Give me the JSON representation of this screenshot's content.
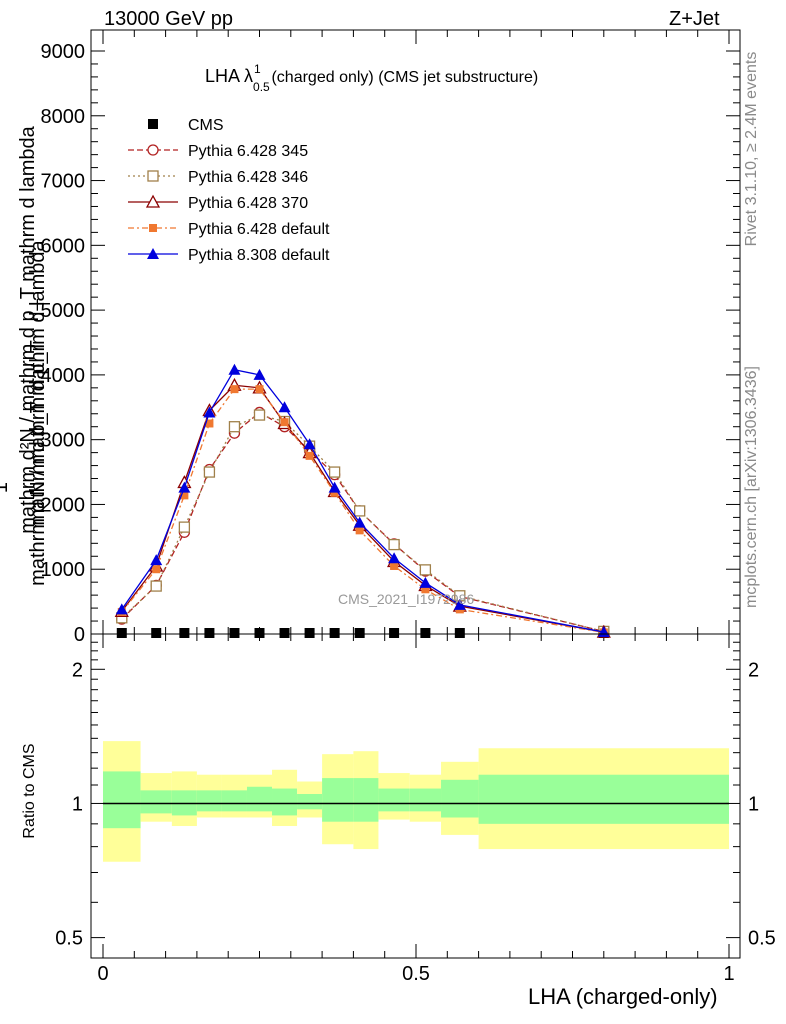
{
  "header": {
    "left": "13000 GeV pp",
    "right": "Z+Jet"
  },
  "chart_data": [
    {
      "type": "line",
      "title": "LHA λ",
      "title_sup": "1",
      "title_sub": "0.5",
      "title_rest": " (charged only) (CMS jet substructure)",
      "ylabel_num": "1",
      "ylabel_den": "mathrm d N / mathrm d p_T",
      "ylabel_top": "mathrm d²N / mathrm d p_T mathrm d lambda",
      "ylabel_lines": [
        "mathrm d²N",
        "mathrm d p_T mathrm d lambda",
        "mathrm d N / mathrm d p_T"
      ],
      "xlim": [
        0,
        1
      ],
      "ylim": [
        0,
        9000
      ],
      "ytick_labels": [
        "0",
        "1000",
        "2000",
        "3000",
        "4000",
        "5000",
        "6000",
        "7000",
        "8000",
        "9000"
      ],
      "ytick_values": [
        0,
        1000,
        2000,
        3000,
        4000,
        5000,
        6000,
        7000,
        8000,
        9000
      ],
      "watermark": "CMS_2021_I1972986",
      "x": [
        0.03,
        0.085,
        0.13,
        0.17,
        0.21,
        0.25,
        0.29,
        0.33,
        0.37,
        0.41,
        0.465,
        0.515,
        0.57,
        0.8
      ],
      "series": [
        {
          "name": "CMS",
          "marker": "square",
          "color": "#000000",
          "dash": "none",
          "values": [
            10,
            8,
            8,
            8,
            8,
            8,
            8,
            8,
            8,
            8,
            8,
            8,
            8,
            5
          ]
        },
        {
          "name": "Pythia 6.428 345",
          "marker": "circle-open",
          "color": "#b22222",
          "dash": "6,3",
          "values": [
            230,
            750,
            1570,
            2540,
            3100,
            3420,
            3200,
            2830,
            2460,
            1900,
            1390,
            970,
            580,
            40
          ]
        },
        {
          "name": "Pythia 6.428 346",
          "marker": "square-open",
          "color": "#a0804a",
          "dash": "2,3",
          "values": [
            250,
            740,
            1650,
            2500,
            3200,
            3380,
            3280,
            2900,
            2500,
            1900,
            1380,
            990,
            590,
            40
          ]
        },
        {
          "name": "Pythia 6.428 370",
          "marker": "triangle-open",
          "color": "#8b0000",
          "dash": "none",
          "values": [
            350,
            1050,
            2340,
            3450,
            3840,
            3800,
            3250,
            2800,
            2200,
            1680,
            1120,
            750,
            430,
            30
          ]
        },
        {
          "name": "Pythia 6.428 default",
          "marker": "square-filled",
          "color": "#f07830",
          "dash": "6,3,2,3",
          "values": [
            340,
            1000,
            2140,
            3250,
            3780,
            3780,
            3270,
            2750,
            2180,
            1600,
            1050,
            690,
            380,
            25
          ]
        },
        {
          "name": "Pythia 8.308 default",
          "marker": "triangle-filled",
          "color": "#0000dd",
          "dash": "none",
          "values": [
            380,
            1140,
            2260,
            3420,
            4080,
            4000,
            3500,
            2930,
            2260,
            1720,
            1170,
            790,
            450,
            30
          ]
        }
      ]
    },
    {
      "type": "area",
      "ylabel": "Ratio to CMS",
      "xlabel": "LHA (charged-only)",
      "xtick_labels": [
        "0",
        "0.5",
        "1"
      ],
      "xtick_values": [
        0,
        0.5,
        1
      ],
      "ytick_labels": [
        "0.5",
        "1",
        "2"
      ],
      "ytick_values": [
        0.5,
        1,
        2
      ],
      "ylim": [
        0.45,
        2.4
      ],
      "bin_edges": [
        0,
        0.06,
        0.11,
        0.15,
        0.19,
        0.23,
        0.27,
        0.31,
        0.35,
        0.4,
        0.44,
        0.49,
        0.54,
        0.6,
        1.0
      ],
      "band_inner": [
        [
          0.88,
          1.18
        ],
        [
          0.95,
          1.07
        ],
        [
          0.94,
          1.07
        ],
        [
          0.96,
          1.07
        ],
        [
          0.96,
          1.07
        ],
        [
          0.96,
          1.09
        ],
        [
          0.94,
          1.08
        ],
        [
          0.97,
          1.05
        ],
        [
          0.91,
          1.14
        ],
        [
          0.91,
          1.14
        ],
        [
          0.96,
          1.08
        ],
        [
          0.96,
          1.08
        ],
        [
          0.93,
          1.13
        ],
        [
          0.9,
          1.16
        ]
      ],
      "band_outer": [
        [
          0.74,
          1.38
        ],
        [
          0.91,
          1.17
        ],
        [
          0.89,
          1.18
        ],
        [
          0.93,
          1.16
        ],
        [
          0.93,
          1.16
        ],
        [
          0.93,
          1.16
        ],
        [
          0.89,
          1.19
        ],
        [
          0.93,
          1.12
        ],
        [
          0.81,
          1.29
        ],
        [
          0.79,
          1.31
        ],
        [
          0.92,
          1.17
        ],
        [
          0.91,
          1.16
        ],
        [
          0.85,
          1.24
        ],
        [
          0.79,
          1.33
        ]
      ],
      "colors": {
        "inner": "#99ff99",
        "outer": "#ffff99",
        "line": "#000000"
      }
    }
  ],
  "side": {
    "rivet": "Rivet 3.1.10, ≥ 2.4M events",
    "mcplots": "mcplots.cern.ch [arXiv:1306.3436]"
  },
  "colors": {
    "frame": "#000000",
    "side_text": "#8a8a8a"
  }
}
